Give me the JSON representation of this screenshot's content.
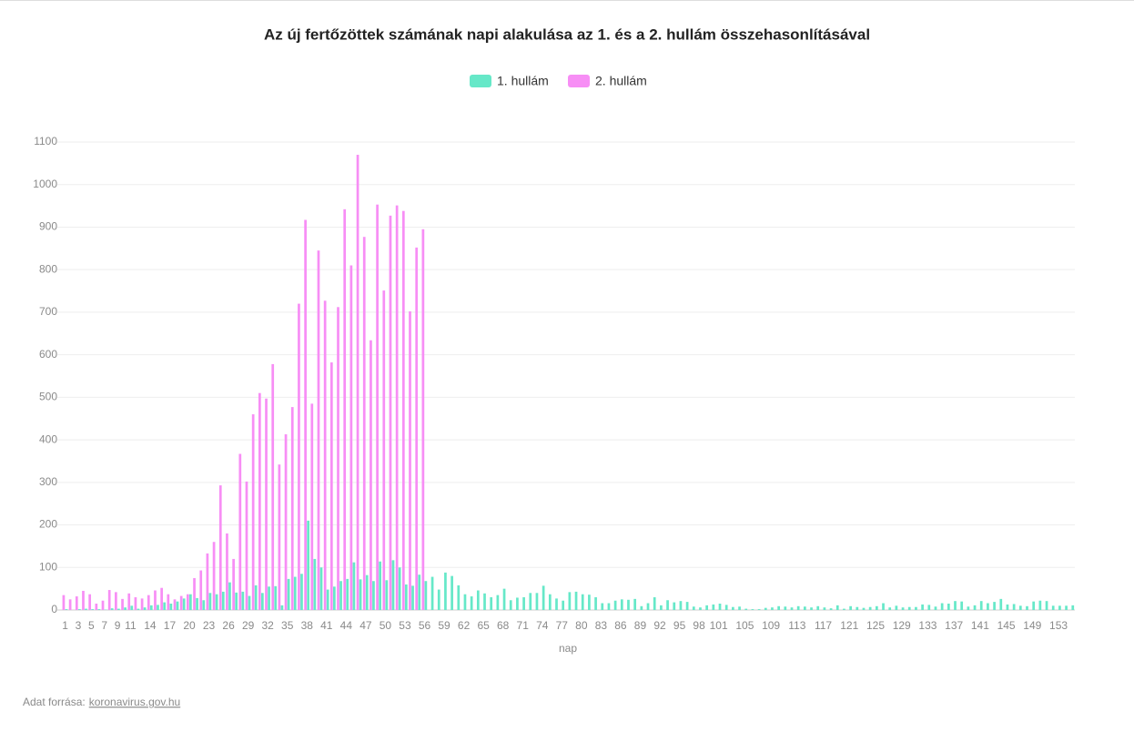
{
  "chart_data": {
    "type": "bar",
    "title": "Az új fertőzöttek számának napi alakulása az 1. és a 2. hullám összehasonlításával",
    "x_label": "nap",
    "legend": "top",
    "grid": true,
    "categories": [
      "1",
      null,
      "3",
      null,
      "5",
      null,
      "7",
      null,
      "9",
      null,
      "11",
      null,
      null,
      "14",
      null,
      null,
      "17",
      null,
      null,
      "20",
      null,
      null,
      "23",
      null,
      null,
      "26",
      null,
      null,
      "29",
      null,
      null,
      "32",
      null,
      null,
      "35",
      null,
      null,
      "38",
      null,
      null,
      "41",
      null,
      null,
      "44",
      null,
      null,
      "47",
      null,
      null,
      "50",
      null,
      null,
      "53",
      null,
      null,
      "56",
      null,
      null,
      "59",
      null,
      null,
      "62",
      null,
      null,
      "65",
      null,
      null,
      "68",
      null,
      null,
      "71",
      null,
      null,
      "74",
      null,
      null,
      "77",
      null,
      null,
      "80",
      null,
      null,
      "83",
      null,
      null,
      "86",
      null,
      null,
      "89",
      null,
      null,
      "92",
      null,
      null,
      "95",
      null,
      null,
      "98",
      null,
      null,
      "101",
      null,
      null,
      null,
      "105",
      null,
      null,
      null,
      "109",
      null,
      null,
      null,
      "113",
      null,
      null,
      null,
      "117",
      null,
      null,
      null,
      "121",
      null,
      null,
      null,
      "125",
      null,
      null,
      null,
      "129",
      null,
      null,
      null,
      "133",
      null,
      null,
      null,
      "137",
      null,
      null,
      null,
      "141",
      null,
      null,
      null,
      "145",
      null,
      null,
      null,
      "149",
      null,
      null,
      null,
      "153",
      null,
      null
    ],
    "series": [
      {
        "name": "1. hullám",
        "color": "#66e8c8",
        "values": [
          2,
          0,
          2,
          3,
          2,
          2,
          1,
          4,
          3,
          6,
          10,
          3,
          6,
          11,
          12,
          18,
          15,
          20,
          27,
          37,
          28,
          23,
          40,
          37,
          43,
          65,
          41,
          43,
          33,
          58,
          40,
          55,
          56,
          11,
          73,
          78,
          85,
          210,
          120,
          100,
          48,
          55,
          68,
          73,
          112,
          72,
          82,
          68,
          114,
          70,
          117,
          100,
          60,
          57,
          83,
          68,
          78,
          48,
          88,
          80,
          58,
          37,
          32,
          46,
          39,
          30,
          35,
          50,
          23,
          29,
          30,
          40,
          40,
          57,
          37,
          27,
          22,
          42,
          43,
          37,
          36,
          30,
          16,
          16,
          22,
          25,
          24,
          26,
          9,
          16,
          30,
          11,
          23,
          18,
          21,
          19,
          8,
          6,
          11,
          13,
          15,
          12,
          7,
          8,
          3,
          2,
          2,
          5,
          6,
          9,
          8,
          6,
          9,
          8,
          6,
          9,
          6,
          4,
          11,
          3,
          9,
          7,
          5,
          7,
          9,
          16,
          6,
          10,
          6,
          7,
          7,
          13,
          12,
          8,
          16,
          15,
          21,
          20,
          8,
          11,
          21,
          16,
          19,
          26,
          13,
          14,
          10,
          9,
          20,
          22,
          21,
          10,
          10,
          10,
          11
        ]
      },
      {
        "name": "2. hullám",
        "color": "#f78ef5",
        "values": [
          35,
          25,
          32,
          45,
          37,
          15,
          22,
          47,
          42,
          26,
          39,
          30,
          27,
          35,
          46,
          52,
          37,
          25,
          33,
          37,
          75,
          93,
          133,
          160,
          293,
          180,
          120,
          367,
          302,
          460,
          510,
          497,
          578,
          342,
          413,
          477,
          720,
          917,
          485,
          845,
          727,
          582,
          712,
          942,
          810,
          1070,
          877,
          634,
          953,
          751,
          927,
          951,
          938,
          702,
          852,
          895,
          null,
          null,
          null,
          null,
          null,
          null,
          null,
          null,
          null,
          null,
          null,
          null,
          null,
          null,
          null,
          null,
          null,
          null,
          null,
          null,
          null,
          null,
          null,
          null,
          null,
          null,
          null,
          null,
          null,
          null,
          null,
          null,
          null,
          null,
          null,
          null,
          null,
          null,
          null,
          null,
          null,
          null,
          null,
          null,
          null,
          null,
          null,
          null,
          null,
          null,
          null,
          null,
          null,
          null,
          null,
          null,
          null,
          null,
          null,
          null,
          null,
          null,
          null,
          null,
          null,
          null,
          null,
          null,
          null,
          null,
          null,
          null,
          null,
          null,
          null,
          null,
          null,
          null,
          null,
          null,
          null,
          null,
          null,
          null,
          null,
          null,
          null,
          null,
          null,
          null,
          null,
          null,
          null,
          null,
          null,
          null,
          null,
          null,
          null
        ]
      }
    ],
    "ylim": [
      0,
      1100
    ],
    "yticks": [
      0,
      100,
      200,
      300,
      400,
      500,
      600,
      700,
      800,
      900,
      1000,
      1100
    ]
  },
  "source": {
    "label": "Adat forrása:",
    "link": "koronavirus.gov.hu"
  }
}
